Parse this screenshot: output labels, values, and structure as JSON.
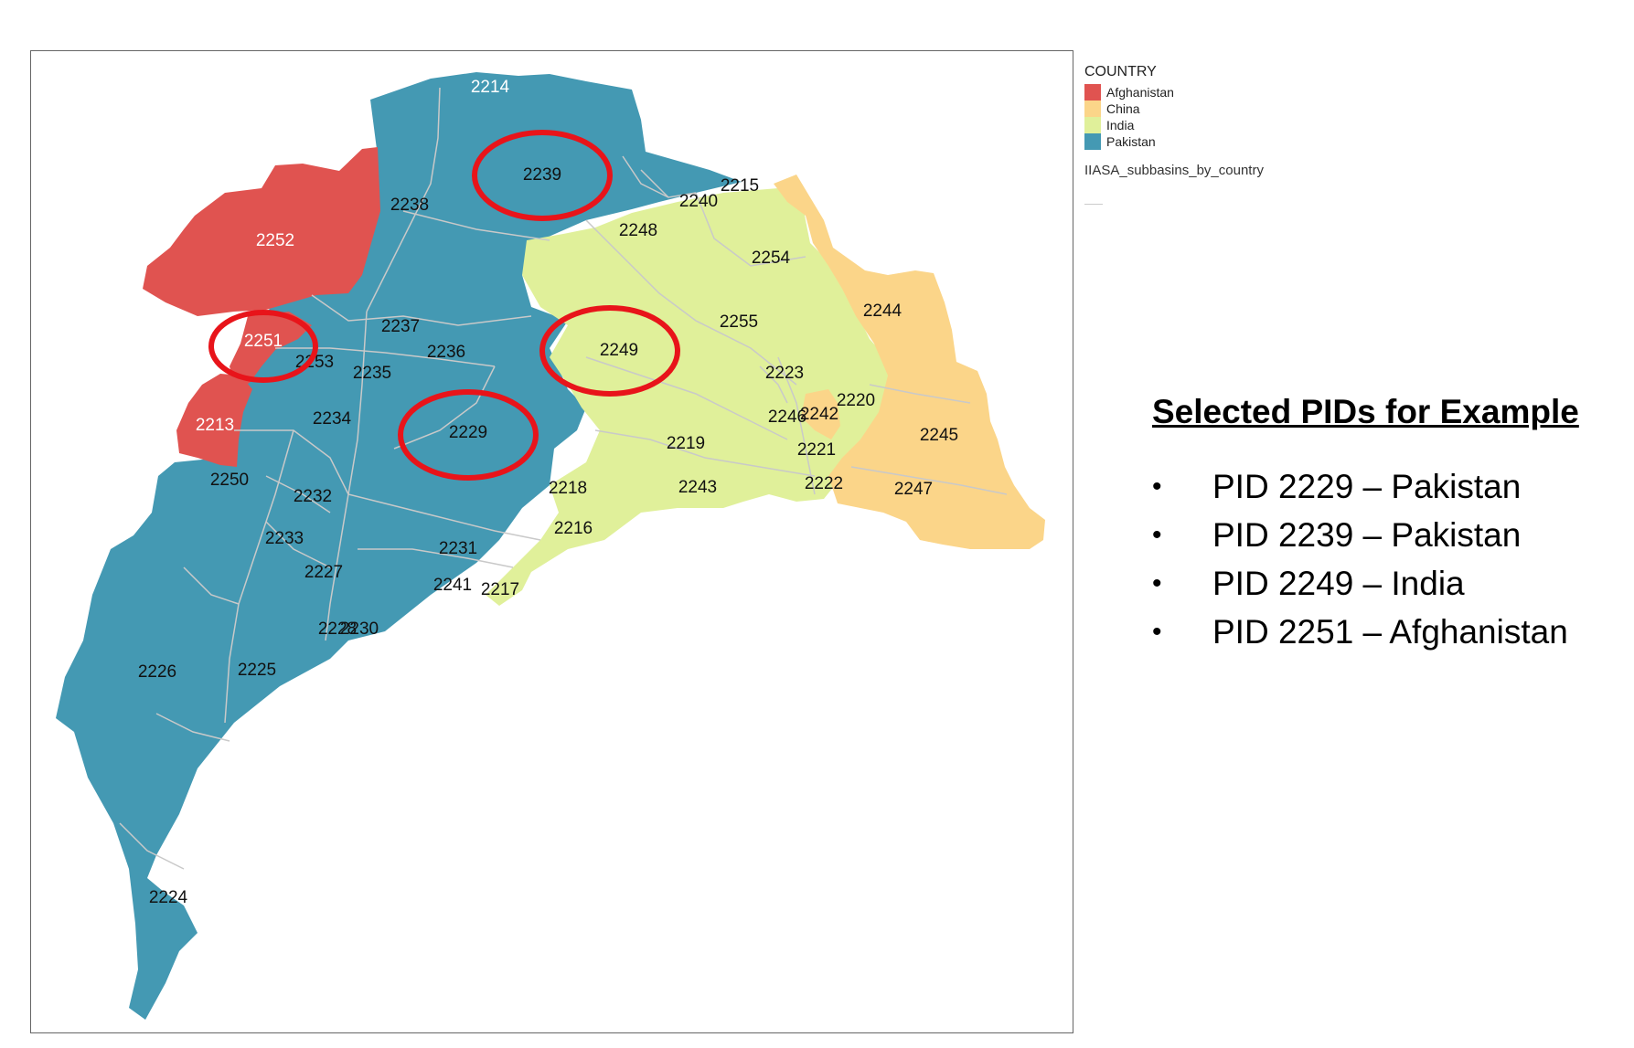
{
  "colors": {
    "afghanistan": "#e05350",
    "china": "#fbd589",
    "india": "#e0f09a",
    "pakistan": "#4499b3",
    "boundary": "#c9c9c9",
    "highlight": "#e8141a"
  },
  "legend": {
    "title": "COUNTRY",
    "items": [
      {
        "label": "Afghanistan",
        "color": "#e05350"
      },
      {
        "label": "China",
        "color": "#fbd589"
      },
      {
        "label": "India",
        "color": "#e0f09a"
      },
      {
        "label": "Pakistan",
        "color": "#4499b3"
      }
    ],
    "layer_name": "IIASA_subbasins_by_country"
  },
  "selection": {
    "title": "Selected PIDs for Example",
    "items": [
      "PID 2229 – Pakistan",
      "PID 2239 – Pakistan",
      "PID 2249 – India",
      "PID 2251 – Afghanistan"
    ]
  },
  "subbasins": [
    {
      "pid": "2214",
      "country": "Pakistan"
    },
    {
      "pid": "2239",
      "country": "Pakistan",
      "selected": true
    },
    {
      "pid": "2238",
      "country": "Pakistan"
    },
    {
      "pid": "2252",
      "country": "Afghanistan"
    },
    {
      "pid": "2240",
      "country": "Pakistan"
    },
    {
      "pid": "2215",
      "country": "Pakistan"
    },
    {
      "pid": "2248",
      "country": "Pakistan"
    },
    {
      "pid": "2254",
      "country": "India"
    },
    {
      "pid": "2244",
      "country": "China"
    },
    {
      "pid": "2255",
      "country": "India"
    },
    {
      "pid": "2237",
      "country": "Pakistan"
    },
    {
      "pid": "2251",
      "country": "Afghanistan",
      "selected": true
    },
    {
      "pid": "2236",
      "country": "Pakistan"
    },
    {
      "pid": "2249",
      "country": "India",
      "selected": true
    },
    {
      "pid": "2253",
      "country": "Pakistan"
    },
    {
      "pid": "2235",
      "country": "Pakistan"
    },
    {
      "pid": "2223",
      "country": "India"
    },
    {
      "pid": "2220",
      "country": "India"
    },
    {
      "pid": "2234",
      "country": "Pakistan"
    },
    {
      "pid": "2246",
      "country": "India"
    },
    {
      "pid": "2242",
      "country": "China"
    },
    {
      "pid": "2213",
      "country": "Afghanistan"
    },
    {
      "pid": "2229",
      "country": "Pakistan",
      "selected": true
    },
    {
      "pid": "2245",
      "country": "China"
    },
    {
      "pid": "2219",
      "country": "India"
    },
    {
      "pid": "2221",
      "country": "India"
    },
    {
      "pid": "2250",
      "country": "Pakistan"
    },
    {
      "pid": "2243",
      "country": "India"
    },
    {
      "pid": "2222",
      "country": "India"
    },
    {
      "pid": "2247",
      "country": "China"
    },
    {
      "pid": "2218",
      "country": "India"
    },
    {
      "pid": "2232",
      "country": "Pakistan"
    },
    {
      "pid": "2216",
      "country": "India"
    },
    {
      "pid": "2233",
      "country": "Pakistan"
    },
    {
      "pid": "2231",
      "country": "Pakistan"
    },
    {
      "pid": "2227",
      "country": "Pakistan"
    },
    {
      "pid": "2241",
      "country": "Pakistan"
    },
    {
      "pid": "2217",
      "country": "India"
    },
    {
      "pid": "2228",
      "country": "Pakistan"
    },
    {
      "pid": "2230",
      "country": "Pakistan"
    },
    {
      "pid": "2226",
      "country": "Pakistan"
    },
    {
      "pid": "2225",
      "country": "Pakistan"
    },
    {
      "pid": "2224",
      "country": "Pakistan"
    }
  ]
}
